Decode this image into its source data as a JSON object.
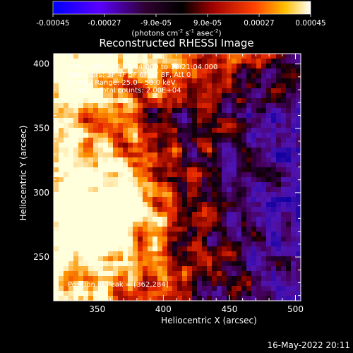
{
  "chart_data": {
    "type": "heatmap",
    "title": "Reconstructed RHESSI Image",
    "xlabel": "Heliocentric X (arcsec)",
    "ylabel": "Heliocentric Y (arcsec)",
    "xlim": [
      317,
      504
    ],
    "ylim": [
      216,
      408
    ],
    "xticks": [
      350,
      400,
      450,
      500
    ],
    "yticks": [
      250,
      300,
      350,
      400
    ],
    "colorbar": {
      "label_line1": "(photons cm",
      "label_line2": " s",
      "label_line3": " asec",
      "label_line4": ")",
      "label_sup1": "-2",
      "label_sup2": "-1",
      "label_sup3": "-2",
      "range": [
        -0.00045,
        0.00045
      ],
      "tick_labels": [
        "-0.00045",
        "-0.00027",
        "-9.0e-05",
        "9.0e-05",
        "0.00027",
        "0.00045"
      ],
      "colormap": "RHESSI blue-purple-red-yellow-white"
    },
    "annotations": [
      "7-Dec-2011 18:15:04.000 to 18:21:04.000",
      "Detectors: 3F 4F 5F 6F 7F 8F, Att 0",
      "Energy Range: 25.0 - 50.0 keV",
      "Clean     Total counts: 2.00E+04"
    ],
    "peak_label": "Position of Peak = [362,284]",
    "peak_position": [
      362,
      284
    ],
    "grid": false
  },
  "footer_timestamp": "16-May-2022 20:11"
}
